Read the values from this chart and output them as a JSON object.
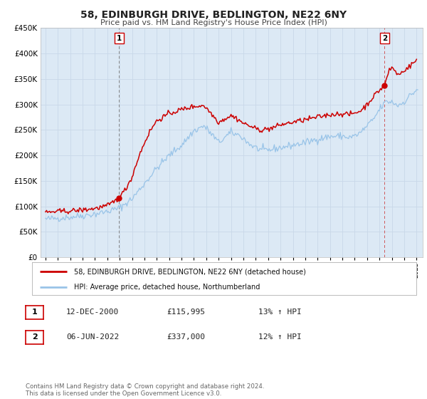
{
  "title": "58, EDINBURGH DRIVE, BEDLINGTON, NE22 6NY",
  "subtitle": "Price paid vs. HM Land Registry's House Price Index (HPI)",
  "background_color": "#ffffff",
  "plot_bg_color": "#dce9f5",
  "grid_color": "#c8d8e8",
  "ylim": [
    0,
    450000
  ],
  "ytick_step": 50000,
  "line1_color": "#cc0000",
  "line2_color": "#99c4e8",
  "marker_color": "#cc0000",
  "vline1_color": "#888888",
  "vline2_color": "#cc3333",
  "box_edge_color": "#cc0000",
  "legend_entries": [
    "58, EDINBURGH DRIVE, BEDLINGTON, NE22 6NY (detached house)",
    "HPI: Average price, detached house, Northumberland"
  ],
  "note1": {
    "num": "1",
    "date": "12-DEC-2000",
    "price": "£115,995",
    "hpi": "13% ↑ HPI"
  },
  "note2": {
    "num": "2",
    "date": "06-JUN-2022",
    "price": "£337,000",
    "hpi": "12% ↑ HPI"
  },
  "footer": "Contains HM Land Registry data © Crown copyright and database right 2024.\nThis data is licensed under the Open Government Licence v3.0.",
  "x_start_year": 1995,
  "x_end_year": 2025,
  "sale1_year": 2000.958,
  "sale1_val": 115995,
  "sale2_year": 2022.417,
  "sale2_val": 337000
}
